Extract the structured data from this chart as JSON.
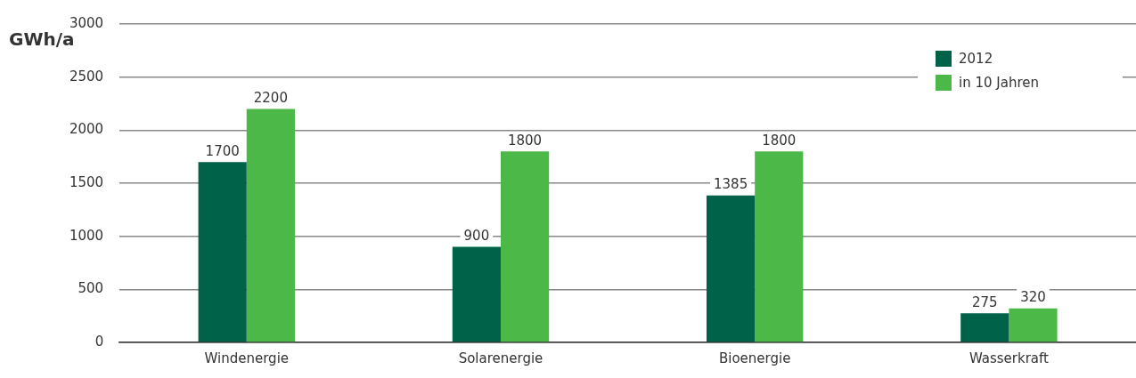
{
  "chart_data": {
    "type": "bar",
    "ylabel": "GWh/a",
    "categories": [
      "Windenergie",
      "Solarenergie",
      "Bioenergie",
      "Wasserkraft"
    ],
    "series": [
      {
        "name": "2012",
        "color": "#006249",
        "values": [
          1700,
          900,
          1385,
          275
        ]
      },
      {
        "name": "in 10 Jahren",
        "color": "#4cb848",
        "values": [
          2200,
          1800,
          1800,
          320
        ]
      }
    ],
    "ylim": [
      0,
      3000
    ],
    "yticks": [
      0,
      500,
      1000,
      1500,
      2000,
      2500,
      3000
    ],
    "grid": "y",
    "legend": "top right",
    "data_labels": true
  }
}
